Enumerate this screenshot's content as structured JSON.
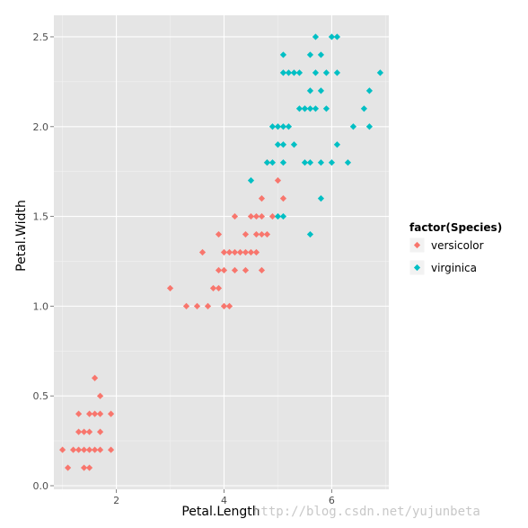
{
  "chart_data": {
    "type": "scatter",
    "xlabel": "Petal.Length",
    "ylabel": "Petal.Width",
    "xlim": [
      0.84,
      7.06
    ],
    "ylim": [
      -0.02,
      2.62
    ],
    "x_ticks": [
      2,
      4,
      6
    ],
    "y_ticks": [
      0.0,
      0.5,
      1.0,
      1.5,
      2.0,
      2.5
    ],
    "x_tick_labels": [
      "2",
      "4",
      "6"
    ],
    "y_tick_labels": [
      "0.0",
      "0.5",
      "1.0",
      "1.5",
      "2.0",
      "2.5"
    ],
    "grid": true,
    "legend": {
      "title": "factor(Species)",
      "position": "right"
    },
    "colors": {
      "panel": "#e5e5e5",
      "grid_major": "#ffffff",
      "grid_minor": "#f2f2f2",
      "versicolor": "#f8766d",
      "virginica": "#00bfc4"
    },
    "series": [
      {
        "name": "versicolor",
        "color": "#f8766d",
        "points": [
          [
            1.0,
            0.2
          ],
          [
            1.1,
            0.1
          ],
          [
            1.2,
            0.2
          ],
          [
            1.3,
            0.2
          ],
          [
            1.3,
            0.3
          ],
          [
            1.3,
            0.4
          ],
          [
            1.4,
            0.1
          ],
          [
            1.4,
            0.2
          ],
          [
            1.4,
            0.3
          ],
          [
            1.5,
            0.1
          ],
          [
            1.5,
            0.2
          ],
          [
            1.5,
            0.3
          ],
          [
            1.5,
            0.4
          ],
          [
            1.6,
            0.2
          ],
          [
            1.6,
            0.4
          ],
          [
            1.6,
            0.6
          ],
          [
            1.7,
            0.2
          ],
          [
            1.7,
            0.3
          ],
          [
            1.7,
            0.4
          ],
          [
            1.7,
            0.5
          ],
          [
            1.9,
            0.2
          ],
          [
            1.9,
            0.4
          ],
          [
            3.0,
            1.1
          ],
          [
            3.3,
            1.0
          ],
          [
            3.5,
            1.0
          ],
          [
            3.6,
            1.3
          ],
          [
            3.7,
            1.0
          ],
          [
            3.8,
            1.1
          ],
          [
            3.9,
            1.1
          ],
          [
            3.9,
            1.2
          ],
          [
            3.9,
            1.4
          ],
          [
            4.0,
            1.0
          ],
          [
            4.0,
            1.2
          ],
          [
            4.0,
            1.3
          ],
          [
            4.1,
            1.0
          ],
          [
            4.1,
            1.3
          ],
          [
            4.2,
            1.2
          ],
          [
            4.2,
            1.3
          ],
          [
            4.2,
            1.5
          ],
          [
            4.3,
            1.3
          ],
          [
            4.4,
            1.2
          ],
          [
            4.4,
            1.3
          ],
          [
            4.4,
            1.4
          ],
          [
            4.5,
            1.3
          ],
          [
            4.5,
            1.5
          ],
          [
            4.6,
            1.3
          ],
          [
            4.6,
            1.4
          ],
          [
            4.6,
            1.5
          ],
          [
            4.7,
            1.2
          ],
          [
            4.7,
            1.4
          ],
          [
            4.7,
            1.5
          ],
          [
            4.7,
            1.6
          ],
          [
            4.8,
            1.4
          ],
          [
            4.8,
            1.8
          ],
          [
            4.9,
            1.5
          ],
          [
            5.0,
            1.7
          ],
          [
            5.1,
            1.6
          ]
        ]
      },
      {
        "name": "virginica",
        "color": "#00bfc4",
        "points": [
          [
            4.5,
            1.7
          ],
          [
            4.8,
            1.8
          ],
          [
            4.9,
            1.8
          ],
          [
            4.9,
            2.0
          ],
          [
            5.0,
            1.5
          ],
          [
            5.0,
            1.9
          ],
          [
            5.0,
            2.0
          ],
          [
            5.1,
            1.5
          ],
          [
            5.1,
            1.8
          ],
          [
            5.1,
            1.9
          ],
          [
            5.1,
            2.0
          ],
          [
            5.1,
            2.3
          ],
          [
            5.1,
            2.4
          ],
          [
            5.2,
            2.0
          ],
          [
            5.2,
            2.3
          ],
          [
            5.3,
            1.9
          ],
          [
            5.3,
            2.3
          ],
          [
            5.4,
            2.1
          ],
          [
            5.4,
            2.3
          ],
          [
            5.5,
            1.8
          ],
          [
            5.5,
            2.1
          ],
          [
            5.5,
            2.1
          ],
          [
            5.6,
            1.4
          ],
          [
            5.6,
            1.8
          ],
          [
            5.6,
            2.1
          ],
          [
            5.6,
            2.2
          ],
          [
            5.6,
            2.4
          ],
          [
            5.7,
            2.1
          ],
          [
            5.7,
            2.3
          ],
          [
            5.7,
            2.5
          ],
          [
            5.8,
            1.6
          ],
          [
            5.8,
            1.8
          ],
          [
            5.8,
            2.2
          ],
          [
            5.8,
            2.4
          ],
          [
            5.9,
            2.1
          ],
          [
            5.9,
            2.3
          ],
          [
            6.0,
            1.8
          ],
          [
            6.0,
            2.5
          ],
          [
            6.1,
            1.9
          ],
          [
            6.1,
            2.3
          ],
          [
            6.1,
            2.5
          ],
          [
            6.3,
            1.8
          ],
          [
            6.4,
            2.0
          ],
          [
            6.6,
            2.1
          ],
          [
            6.7,
            2.0
          ],
          [
            6.7,
            2.2
          ],
          [
            6.9,
            2.3
          ]
        ]
      }
    ]
  },
  "watermark": "http://blog.csdn.net/yujunbeta"
}
